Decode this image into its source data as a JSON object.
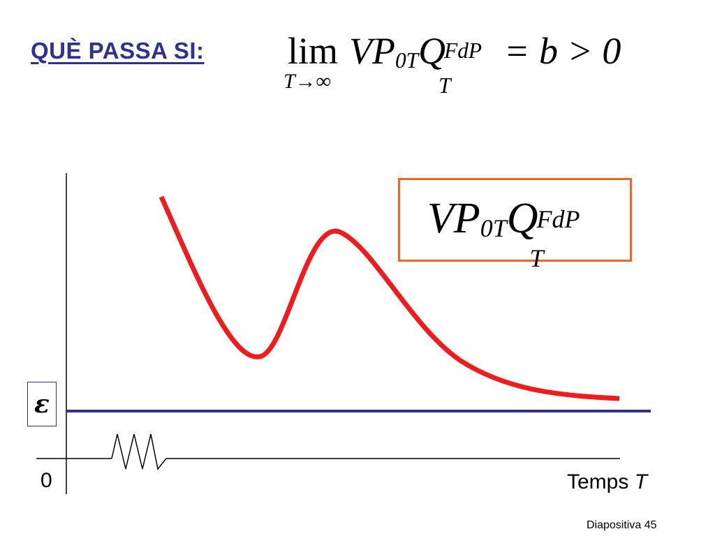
{
  "heading": "QUÈ PASSA SI:",
  "formula": {
    "lim": "lim",
    "lim_sub": "T→∞",
    "vp": "VP",
    "vp_sub": "0T",
    "q": "Q",
    "q_sup": "FdP",
    "q_sub": "T",
    "rhs": "= b > 0"
  },
  "box_formula": {
    "vp": "VP",
    "vp_sub": "0T",
    "q": "Q",
    "q_sup": "FdP",
    "q_sub": "T"
  },
  "epsilon": "ε",
  "origin_label": "0",
  "x_axis_label": "Temps",
  "x_axis_var": "T",
  "footer": "Diapositiva 45",
  "colors": {
    "heading": "#2e3191",
    "curve": "#ee1c1c",
    "epsilon_line": "#2e3191",
    "box_border": "#f26522"
  }
}
